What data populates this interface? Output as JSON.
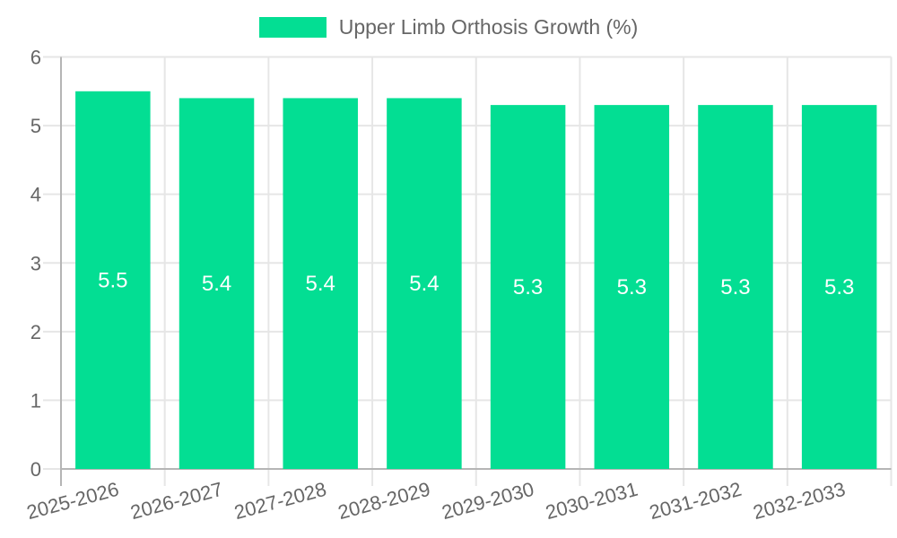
{
  "chart_data": {
    "type": "bar",
    "title": "",
    "legend": "Upper Limb Orthosis Growth (%)",
    "legend_position": "top",
    "categories": [
      "2025-2026",
      "2026-2027",
      "2027-2028",
      "2028-2029",
      "2029-2030",
      "2030-2031",
      "2031-2032",
      "2032-2033"
    ],
    "series": [
      {
        "name": "Upper Limb Orthosis Growth (%)",
        "values": [
          5.5,
          5.4,
          5.4,
          5.4,
          5.3,
          5.3,
          5.3,
          5.3
        ]
      }
    ],
    "data_labels": [
      "5.5",
      "5.4",
      "5.4",
      "5.4",
      "5.3",
      "5.3",
      "5.3",
      "5.3"
    ],
    "xlabel": "",
    "ylabel": "",
    "ylim": [
      0,
      6
    ],
    "y_ticks": [
      "0",
      "1",
      "2",
      "3",
      "4",
      "5",
      "6"
    ],
    "grid": true,
    "colors": {
      "bar": "#03de93",
      "bar_value_label": "#ffffff",
      "axis_text": "#666666",
      "grid_line": "#e6e6e6",
      "axis_line": "#b5b5b5"
    }
  }
}
